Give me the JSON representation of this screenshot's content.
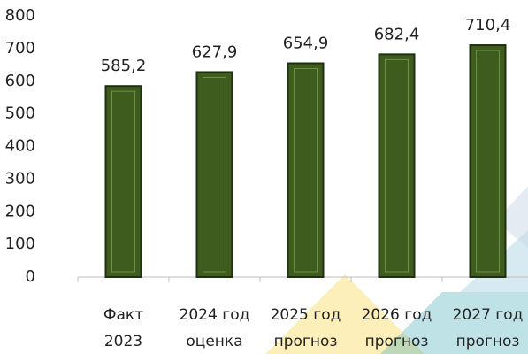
{
  "chart_data": {
    "type": "bar",
    "categories": [
      [
        "Факт",
        "2023"
      ],
      [
        "2024 год",
        "оценка"
      ],
      [
        "2025 год",
        "прогноз"
      ],
      [
        "2026 год",
        "прогноз"
      ],
      [
        "2027 год",
        "прогноз"
      ]
    ],
    "values": [
      585.2,
      627.9,
      654.9,
      682.4,
      710.4
    ],
    "value_labels": [
      "585,2",
      "627,9",
      "654,9",
      "682,4",
      "710,4"
    ],
    "color": "#3d5c1e",
    "ylim": [
      0,
      800
    ],
    "yticks": [
      0,
      100,
      200,
      300,
      400,
      500,
      600,
      700,
      800
    ],
    "grid": false
  }
}
